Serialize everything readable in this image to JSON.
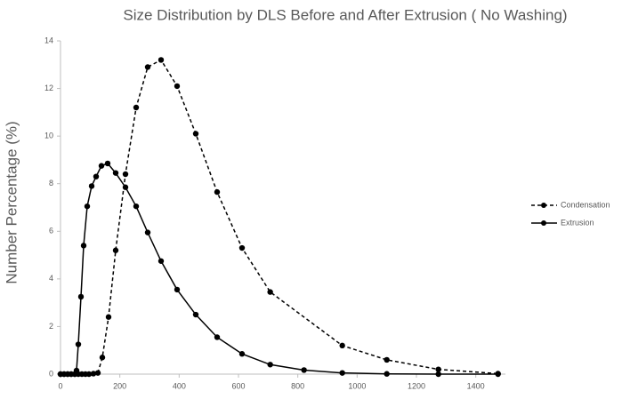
{
  "chart_data": {
    "type": "line",
    "title": "Size Distribution by DLS Before and After Extrusion ( No Washing)",
    "y_label": "Number Percentage (%)",
    "xlim": [
      0,
      1500
    ],
    "xticks": [
      0,
      200,
      400,
      600,
      800,
      1000,
      1200,
      1400
    ],
    "ylim": [
      0,
      14
    ],
    "yticks": [
      0,
      2,
      4,
      6,
      8,
      10,
      12,
      14
    ],
    "legend": "right",
    "series": [
      {
        "name": "Condensation",
        "color": "#000000",
        "dash": true,
        "x": [
          0,
          12,
          24,
          36,
          48,
          60,
          72,
          84,
          96,
          111,
          126,
          141,
          162,
          186,
          219,
          255,
          294,
          339,
          393,
          456,
          528,
          612,
          707,
          950,
          1100,
          1274,
          1475
        ],
        "values": [
          0,
          0,
          0,
          0,
          0,
          0,
          0,
          0,
          0,
          0.02,
          0.05,
          0.7,
          2.4,
          5.2,
          8.4,
          11.2,
          12.9,
          13.2,
          12.1,
          10.1,
          7.65,
          5.3,
          3.45,
          1.2,
          0.6,
          0.2,
          0.02
        ]
      },
      {
        "name": "Extrusion",
        "color": "#000000",
        "dash": false,
        "x": [
          0,
          12,
          24,
          36,
          48,
          54,
          60,
          69,
          78,
          90,
          105,
          120,
          138,
          159,
          186,
          219,
          255,
          294,
          339,
          393,
          456,
          528,
          612,
          707,
          821,
          950,
          1100,
          1274,
          1475
        ],
        "values": [
          0,
          0,
          0,
          0,
          0,
          0.15,
          1.25,
          3.25,
          5.4,
          7.05,
          7.9,
          8.3,
          8.75,
          8.85,
          8.45,
          7.85,
          7.05,
          5.95,
          4.75,
          3.55,
          2.5,
          1.55,
          0.85,
          0.4,
          0.17,
          0.05,
          0.01,
          0,
          0
        ]
      }
    ]
  }
}
